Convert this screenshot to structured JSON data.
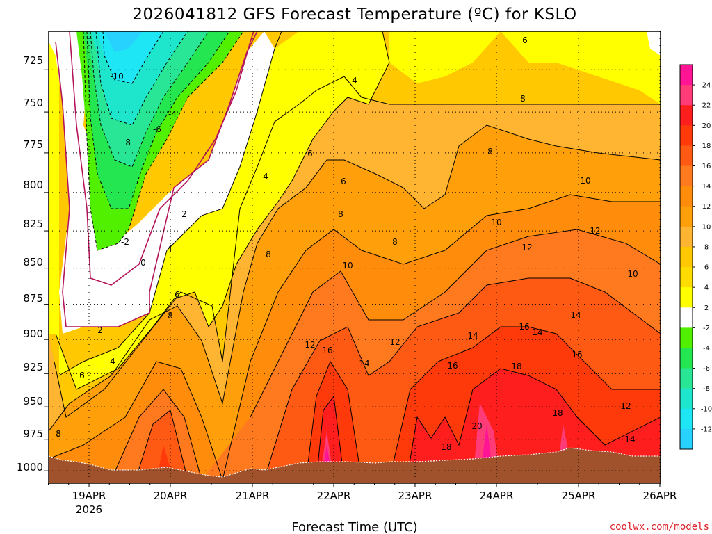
{
  "chart_data": {
    "type": "heatmap",
    "title": "2026041812 GFS Forecast Temperature (ºC) for KSLO",
    "xlabel": "Forecast Time (UTC)",
    "ylabel": "",
    "credit": "coolwx.com/models",
    "x_ticks": [
      "19APR",
      "20APR",
      "21APR",
      "22APR",
      "23APR",
      "24APR",
      "25APR",
      "26APR"
    ],
    "x_year_label": "2026",
    "y_ticks": [
      "725",
      "750",
      "775",
      "800",
      "825",
      "850",
      "875",
      "900",
      "925",
      "950",
      "975",
      "1000"
    ],
    "ylim": [
      1010,
      703
    ],
    "colorbar": {
      "labels": [
        "24",
        "22",
        "20",
        "18",
        "16",
        "14",
        "12",
        "10",
        "8",
        "6",
        "4",
        "2",
        "-2",
        "-4",
        "-6",
        "-8",
        "-10",
        "-12"
      ],
      "colors": [
        "#ff1495",
        "#ff3c78",
        "#ff1e1e",
        "#ff3a0a",
        "#ff5a14",
        "#ff7a1e",
        "#ff8c0a",
        "#ffa00a",
        "#ffb432",
        "#ffc800",
        "#ffdc00",
        "#ffff00",
        "#ffffff",
        "#50f000",
        "#23e650",
        "#28e696",
        "#1ee6cd",
        "#1ee6f5",
        "#28d2ff"
      ]
    },
    "contour_labels": [
      "-10",
      "-8",
      "-6",
      "-4",
      "-2",
      "0",
      "2",
      "2",
      "4",
      "4",
      "4",
      "4",
      "6",
      "6",
      "6",
      "6",
      "6",
      "8",
      "8",
      "8",
      "8",
      "8",
      "8",
      "8",
      "10",
      "10",
      "10",
      "10",
      "12",
      "12",
      "12",
      "12",
      "12",
      "14",
      "14",
      "14",
      "14",
      "14",
      "16",
      "16",
      "16",
      "16",
      "18",
      "18",
      "18",
      "20"
    ]
  }
}
